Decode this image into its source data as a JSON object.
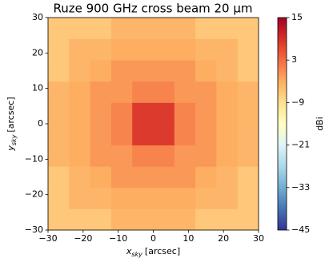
{
  "chart_data": {
    "type": "heatmap",
    "title": "Ruze 900 GHz cross beam 20 μm",
    "xlabel": {
      "symbol": "x",
      "sub": "sky",
      "unit": "[arcsec]"
    },
    "ylabel": {
      "symbol": "y",
      "sub": "sky",
      "unit": "[arcsec]"
    },
    "colorbar_label": "dBi",
    "x_bins": [
      -30,
      -24,
      -18,
      -12,
      -6,
      0,
      6,
      12,
      18,
      24,
      30
    ],
    "y_bins": [
      -30,
      -24,
      -18,
      -12,
      -6,
      0,
      6,
      12,
      18,
      24,
      30
    ],
    "z": [
      [
        -6,
        -6,
        -6,
        -4,
        -4,
        -4,
        -4,
        -6,
        -6,
        -6
      ],
      [
        -6,
        -4,
        -4,
        -3,
        -3,
        -3,
        -3,
        -4,
        -4,
        -6
      ],
      [
        -6,
        -4,
        -3,
        -1,
        -1,
        -1,
        -1,
        -3,
        -4,
        -6
      ],
      [
        -4,
        -3,
        -1,
        -1,
        1,
        1,
        -1,
        -1,
        -3,
        -4
      ],
      [
        -4,
        -3,
        -1,
        1,
        8,
        8,
        1,
        -1,
        -3,
        -4
      ],
      [
        -4,
        -3,
        -1,
        1,
        8,
        8,
        1,
        -1,
        -3,
        -4
      ],
      [
        -4,
        -3,
        -1,
        -1,
        1,
        1,
        -1,
        -1,
        -3,
        -4
      ],
      [
        -6,
        -4,
        -3,
        -1,
        -1,
        -1,
        -1,
        -3,
        -4,
        -6
      ],
      [
        -6,
        -4,
        -4,
        -3,
        -3,
        -3,
        -3,
        -4,
        -4,
        -6
      ],
      [
        -6,
        -6,
        -6,
        -4,
        -4,
        -4,
        -4,
        -6,
        -6,
        -6
      ]
    ],
    "xlim": [
      -30,
      30
    ],
    "ylim": [
      -30,
      30
    ],
    "xticks": [
      {
        "value": -30,
        "label": "−30"
      },
      {
        "value": -20,
        "label": "−20"
      },
      {
        "value": -10,
        "label": "−10"
      },
      0,
      10,
      20,
      30
    ],
    "yticks": [
      {
        "value": -30,
        "label": "−30"
      },
      {
        "value": -20,
        "label": "−20"
      },
      {
        "value": -10,
        "label": "−10"
      },
      0,
      10,
      20,
      30
    ],
    "zlim": [
      -45,
      15
    ],
    "zticks": [
      {
        "value": -45,
        "label": "−45"
      },
      {
        "value": -33,
        "label": "−33"
      },
      {
        "value": -21,
        "label": "−21"
      },
      {
        "value": -9,
        "label": "−9"
      },
      3,
      15
    ],
    "colormap": [
      "#313695",
      "#4575b4",
      "#74add1",
      "#abd9e9",
      "#e0f3f8",
      "#ffffbf",
      "#fee090",
      "#fdae61",
      "#f46d43",
      "#d73027",
      "#a50026"
    ]
  }
}
